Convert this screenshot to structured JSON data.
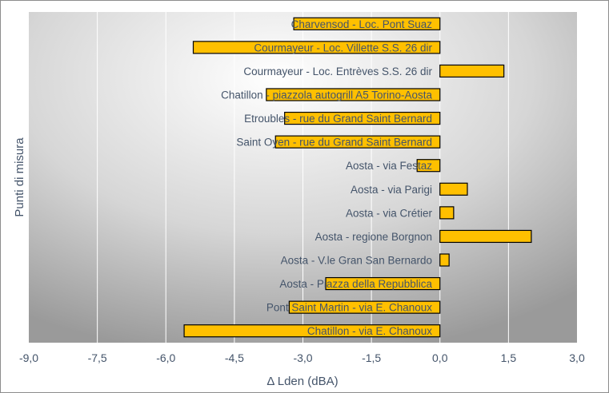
{
  "chart_data": {
    "type": "bar",
    "orientation": "horizontal",
    "title": "",
    "xlabel": "Δ Lden (dBA)",
    "ylabel": "Punti di misura",
    "xlim": [
      -9,
      3
    ],
    "xticks": [
      "-9,0",
      "-7,5",
      "-6,0",
      "-4,5",
      "-3,0",
      "-1,5",
      "0,0",
      "1,5",
      "3,0"
    ],
    "xtick_values": [
      -9,
      -7.5,
      -6,
      -4.5,
      -3,
      -1.5,
      0,
      1.5,
      3
    ],
    "grid": "vertical",
    "categories": [
      "Charvensod - Loc. Pont Suaz",
      "Courmayeur - Loc. Villette  S.S. 26 dir",
      "Courmayeur - Loc. Entrèves  S.S. 26 dir",
      "Chatillon - piazzola autogrill A5 Torino-Aosta",
      "Etroubles - rue du Grand Saint Bernard",
      "Saint Oyen - rue du Grand Saint Bernard",
      "Aosta - via Festaz",
      "Aosta - via Parigi",
      "Aosta - via Crétier",
      "Aosta - regione Borgnon",
      "Aosta - V.le Gran San Bernardo",
      "Aosta - Piazza della Repubblica",
      "Pont Saint Martin - via E. Chanoux",
      "Chatillon - via E. Chanoux"
    ],
    "values": [
      -3.2,
      -5.4,
      1.4,
      -3.8,
      -3.4,
      -3.6,
      -0.5,
      0.6,
      0.3,
      2.0,
      0.2,
      -2.5,
      -3.3,
      -5.6
    ],
    "colors": {
      "bar": "#FFC000",
      "bar_border": "#000000",
      "text": "#44546A",
      "grid": "#FFFFFF"
    }
  }
}
